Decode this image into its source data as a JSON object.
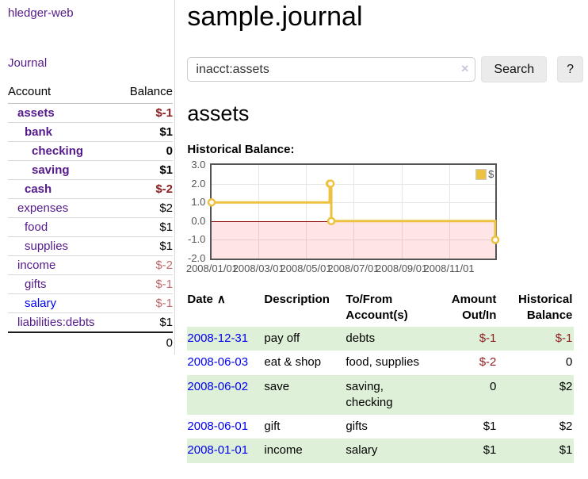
{
  "app": {
    "brand": "hledger-web",
    "journal": "Journal"
  },
  "sidebar": {
    "header": {
      "account": "Account",
      "balance": "Balance"
    },
    "accounts": [
      {
        "name": "assets",
        "balance": "$-1",
        "depth": 1,
        "bold": true,
        "neg": true
      },
      {
        "name": "bank",
        "balance": "$1",
        "depth": 2,
        "bold": true
      },
      {
        "name": "checking",
        "balance": "0",
        "depth": 3,
        "bold": true
      },
      {
        "name": "saving",
        "balance": "$1",
        "depth": 3,
        "bold": true
      },
      {
        "name": "cash",
        "balance": "$-2",
        "depth": 2,
        "bold": true,
        "neg": true
      },
      {
        "name": "expenses",
        "balance": "$2",
        "depth": 1
      },
      {
        "name": "food",
        "balance": "$1",
        "depth": 2
      },
      {
        "name": "supplies",
        "balance": "$1",
        "depth": 2
      },
      {
        "name": "income",
        "balance": "$-2",
        "depth": 1,
        "neg_light": true
      },
      {
        "name": "gifts",
        "balance": "$-1",
        "depth": 2,
        "neg_light": true
      },
      {
        "name": "salary",
        "balance": "$-1",
        "depth": 2,
        "neg_light": true,
        "blue": true
      },
      {
        "name": "liabilities:debts",
        "balance": "$1",
        "depth": 1
      }
    ],
    "total": "0"
  },
  "main": {
    "title": "sample.journal"
  },
  "search": {
    "query": "inacct:assets",
    "clear": "×",
    "search_label": "Search",
    "help_label": "?"
  },
  "account": {
    "name": "assets",
    "section_label": "Historical Balance:"
  },
  "chart_data": {
    "type": "line",
    "title": "Historical Balance:",
    "series_label": "$",
    "step": true,
    "line_color": "#EDC240",
    "marker_fill": "#ffffff",
    "grid_color": "#e6e6e6",
    "border_color": "#545454",
    "axis_text_color": "#545454",
    "zero_line_color": "#8b0000",
    "negative_region_color": "rgba(255,0,0,0.10)",
    "legend_position": "top-right",
    "x_range_days": [
      0,
      365
    ],
    "ylim": [
      -2,
      3
    ],
    "y_ticks": [
      {
        "label": "3.0",
        "value": 3
      },
      {
        "label": "2.0",
        "value": 2
      },
      {
        "label": "1.0",
        "value": 1
      },
      {
        "label": "0.0",
        "value": 0
      },
      {
        "label": "-1.0",
        "value": -1
      },
      {
        "label": "-2.0",
        "value": -2
      }
    ],
    "x_ticks": [
      {
        "label": "2008/01/01",
        "day": 0
      },
      {
        "label": "2008/03/01",
        "day": 60
      },
      {
        "label": "2008/05/01",
        "day": 121
      },
      {
        "label": "2008/07/01",
        "day": 182
      },
      {
        "label": "2008/09/01",
        "day": 244
      },
      {
        "label": "2008/11/01",
        "day": 305
      }
    ],
    "points": [
      {
        "date": "2008-01-01",
        "day": 0,
        "value": 1
      },
      {
        "date": "2008-06-01",
        "day": 152,
        "value": 2
      },
      {
        "date": "2008-06-02",
        "day": 153,
        "value": 2
      },
      {
        "date": "2008-06-03",
        "day": 154,
        "value": 0
      },
      {
        "date": "2008-12-31",
        "day": 365,
        "value": -1
      }
    ]
  },
  "register": {
    "sort_caret": "∧",
    "columns": [
      {
        "key": "date",
        "label": "Date",
        "sortable": true
      },
      {
        "key": "description",
        "label": "Description"
      },
      {
        "key": "accounts",
        "label": "To/From\nAccount(s)"
      },
      {
        "key": "amount",
        "label": "Amount\nOut/In",
        "align": "right"
      },
      {
        "key": "balance",
        "label": "Historical\nBalance",
        "align": "right"
      }
    ],
    "rows": [
      {
        "date": "2008-12-31",
        "description": "pay off",
        "accounts": "debts",
        "amount": "$-1",
        "balance": "$-1",
        "amount_neg": true,
        "balance_neg": true,
        "shaded": true
      },
      {
        "date": "2008-06-03",
        "description": "eat & shop",
        "accounts": "food, supplies",
        "amount": "$-2",
        "balance": "0",
        "amount_neg": true
      },
      {
        "date": "2008-06-02",
        "description": "save",
        "accounts": "saving, checking",
        "amount": "0",
        "balance": "$2",
        "shaded": true
      },
      {
        "date": "2008-06-01",
        "description": "gift",
        "accounts": "gifts",
        "amount": "$1",
        "balance": "$2"
      },
      {
        "date": "2008-01-01",
        "description": "income",
        "accounts": "salary",
        "amount": "$1",
        "balance": "$1",
        "shaded": true
      }
    ]
  }
}
